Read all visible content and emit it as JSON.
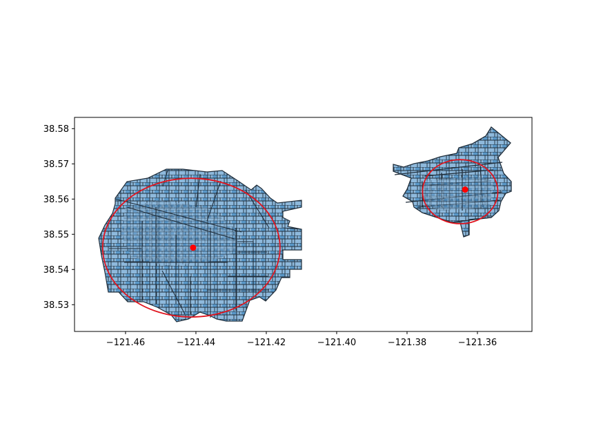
{
  "chart_data": {
    "type": "scatter",
    "title": "",
    "xlabel": "",
    "ylabel": "",
    "xlim": [
      -121.4745,
      -121.3445
    ],
    "ylim": [
      38.5224,
      38.5832
    ],
    "x_ticks": [
      {
        "value": -121.46,
        "label": "−121.46"
      },
      {
        "value": -121.44,
        "label": "−121.44"
      },
      {
        "value": -121.42,
        "label": "−121.42"
      },
      {
        "value": -121.4,
        "label": "−121.40"
      },
      {
        "value": -121.38,
        "label": "−121.38"
      },
      {
        "value": -121.36,
        "label": "−121.36"
      }
    ],
    "y_ticks": [
      {
        "value": 38.53,
        "label": "38.53"
      },
      {
        "value": 38.54,
        "label": "38.54"
      },
      {
        "value": 38.55,
        "label": "38.55"
      },
      {
        "value": 38.56,
        "label": "38.56"
      },
      {
        "value": 38.57,
        "label": "38.57"
      },
      {
        "value": 38.58,
        "label": "38.58"
      }
    ],
    "grid": false,
    "legend": "none",
    "series": [
      {
        "regions": [
          {
            "centroid": {
              "x": -121.4408,
              "y": 38.5462
            },
            "ellipse": {
              "cx": -121.4413,
              "cy": 38.5462,
              "rx": 0.0252,
              "ry": 0.0197
            }
          },
          {
            "centroid": {
              "x": -121.3635,
              "y": 38.5627
            },
            "ellipse": {
              "cx": -121.3649,
              "cy": 38.5621,
              "rx": 0.0107,
              "ry": 0.0091
            }
          }
        ]
      }
    ],
    "colors": {
      "parcel_fill": "#5a98c8",
      "parcel_fill_light": "#8eb9dc",
      "parcel_edge": "#1f2d3a",
      "centroid": "#ff0000",
      "ellipse": "#e0141e"
    }
  }
}
